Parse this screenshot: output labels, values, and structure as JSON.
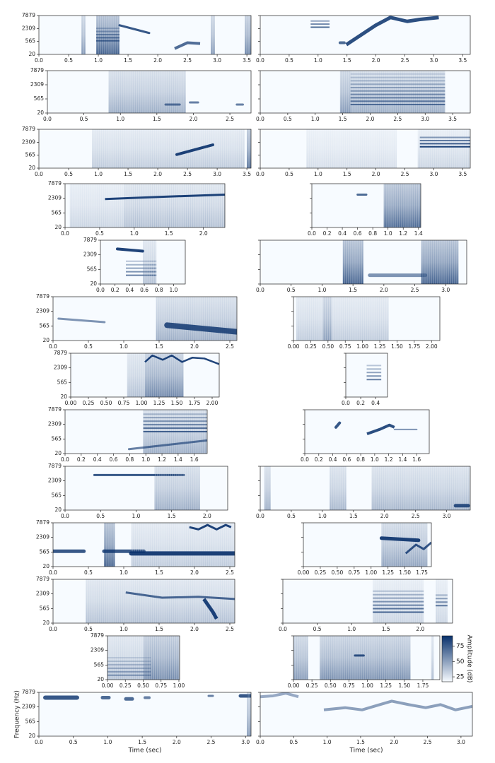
{
  "chart_data": [
    {
      "type": "spectrogram",
      "xlim": [
        0,
        3.57
      ],
      "xticks": [
        {
          "value": 0,
          "label": "0.0"
        },
        0.5,
        {
          "value": 1,
          "label": "1.0"
        },
        1.5,
        {
          "value": 2,
          "label": "2.0"
        },
        2.5,
        {
          "value": 3,
          "label": "3.0"
        },
        3.5
      ],
      "ylabels": [
        "7879",
        "2309",
        "565",
        "20"
      ]
    },
    {
      "type": "spectrogram",
      "xlim": [
        0,
        3.63
      ],
      "xticks": [
        {
          "value": 0,
          "label": "0.0"
        },
        0.5,
        {
          "value": 1,
          "label": "1.0"
        },
        1.5,
        {
          "value": 2,
          "label": "2.0"
        },
        2.5,
        {
          "value": 3,
          "label": "3.0"
        },
        3.5
      ]
    },
    {
      "type": "spectrogram",
      "xlim": [
        0,
        2.79
      ],
      "xticks": [
        {
          "value": 0,
          "label": "0.0"
        },
        0.5,
        {
          "value": 1,
          "label": "1.0"
        },
        1.5,
        {
          "value": 2,
          "label": "2.0"
        },
        2.5
      ],
      "ylabels": [
        "7879",
        "2309",
        "565",
        "20"
      ]
    },
    {
      "type": "spectrogram",
      "xlim": [
        0,
        3.82
      ],
      "xticks": [
        {
          "value": 0,
          "label": "0.0"
        },
        0.5,
        {
          "value": 1,
          "label": "1.0"
        },
        1.5,
        {
          "value": 2,
          "label": "2.0"
        },
        2.5,
        {
          "value": 3,
          "label": "3.0"
        },
        3.5
      ]
    },
    {
      "type": "spectrogram",
      "xlim": [
        0,
        3.57
      ],
      "xticks": [
        {
          "value": 0,
          "label": "0.0"
        },
        0.5,
        {
          "value": 1,
          "label": "1.0"
        },
        1.5,
        {
          "value": 2,
          "label": "2.0"
        },
        2.5,
        {
          "value": 3,
          "label": "3.0"
        },
        3.5
      ],
      "ylabels": [
        "7879",
        "2309",
        "565",
        "20"
      ]
    },
    {
      "type": "spectrogram",
      "xlim": [
        0,
        3.63
      ],
      "xticks": [
        {
          "value": 0,
          "label": "0.0"
        },
        0.5,
        {
          "value": 1,
          "label": "1.0"
        },
        1.5,
        {
          "value": 2,
          "label": "2.0"
        },
        2.5,
        {
          "value": 3,
          "label": "3.0"
        },
        3.5
      ]
    },
    {
      "type": "spectrogram",
      "xlim": [
        0,
        2.31
      ],
      "xticks": [
        {
          "value": 0,
          "label": "0.0"
        },
        0.5,
        {
          "value": 1,
          "label": "1.0"
        },
        1.5,
        {
          "value": 2,
          "label": "2.0"
        }
      ],
      "ylabels": [
        "7879",
        "2309",
        "565",
        "20"
      ]
    },
    {
      "type": "spectrogram",
      "xlim": [
        0,
        1.43
      ],
      "xticks": [
        {
          "value": 0,
          "label": "0.0"
        },
        0.2,
        0.4,
        0.6,
        0.8,
        {
          "value": 1,
          "label": "1.0"
        },
        1.2,
        1.4
      ]
    },
    {
      "type": "spectrogram",
      "xlim": [
        0,
        1.16
      ],
      "xticks": [
        {
          "value": 0,
          "label": "0.0"
        },
        0.2,
        0.4,
        0.6,
        0.8,
        {
          "value": 1,
          "label": "1.0"
        }
      ],
      "ylabels": [
        "7879",
        "2309",
        "565",
        "20"
      ]
    },
    {
      "type": "spectrogram",
      "xlim": [
        0,
        3.34
      ],
      "xticks": [
        {
          "value": 0,
          "label": "0.0"
        },
        0.5,
        {
          "value": 1,
          "label": "1.0"
        },
        1.5,
        {
          "value": 2,
          "label": "2.0"
        },
        2.5,
        {
          "value": 3,
          "label": "3.0"
        }
      ]
    },
    {
      "type": "spectrogram",
      "xlim": [
        0,
        2.6
      ],
      "xticks": [
        {
          "value": 0,
          "label": "0.0"
        },
        0.5,
        {
          "value": 1,
          "label": "1.0"
        },
        1.5,
        {
          "value": 2,
          "label": "2.0"
        },
        2.5
      ],
      "ylabels": [
        "7879",
        "2309",
        "565",
        "20"
      ]
    },
    {
      "type": "spectrogram",
      "xlim": [
        0,
        2.12
      ],
      "xticks": [
        {
          "value": 0,
          "label": "0.00"
        },
        0.25,
        {
          "value": 0.5,
          "label": "0.50"
        },
        0.75,
        {
          "value": 1,
          "label": "1.00"
        },
        1.25,
        {
          "value": 1.5,
          "label": "1.50"
        },
        1.75,
        {
          "value": 2,
          "label": "2.00"
        }
      ]
    },
    {
      "type": "spectrogram",
      "xlim": [
        0,
        2.1
      ],
      "xticks": [
        {
          "value": 0,
          "label": "0.00"
        },
        0.25,
        {
          "value": 0.5,
          "label": "0.50"
        },
        0.75,
        {
          "value": 1,
          "label": "1.00"
        },
        1.25,
        {
          "value": 1.5,
          "label": "1.50"
        },
        1.75,
        {
          "value": 2,
          "label": "2.00"
        }
      ],
      "ylabels": [
        "7879",
        "2309",
        "565",
        "20"
      ]
    },
    {
      "type": "spectrogram",
      "xlim": [
        0,
        0.56
      ],
      "xticks": [
        {
          "value": 0,
          "label": "0.0"
        },
        0.2,
        0.4
      ]
    },
    {
      "type": "spectrogram",
      "xlim": [
        0,
        1.76
      ],
      "xticks": [
        {
          "value": 0,
          "label": "0.0"
        },
        0.2,
        0.4,
        0.6,
        0.8,
        {
          "value": 1,
          "label": "1.0"
        },
        1.2,
        1.4,
        1.6
      ],
      "ylabels": [
        "7879",
        "2309",
        "565",
        "20"
      ]
    },
    {
      "type": "spectrogram",
      "xlim": [
        0,
        1.78
      ],
      "xticks": [
        {
          "value": 0,
          "label": "0.0"
        },
        0.2,
        0.4,
        0.6,
        0.8,
        {
          "value": 1,
          "label": "1.0"
        },
        1.2,
        1.4,
        1.6
      ]
    },
    {
      "type": "spectrogram",
      "xlim": [
        0,
        2.29
      ],
      "xticks": [
        {
          "value": 0,
          "label": "0.0"
        },
        0.5,
        {
          "value": 1,
          "label": "1.0"
        },
        1.5,
        {
          "value": 2,
          "label": "2.0"
        }
      ],
      "ylabels": [
        "7879",
        "2309",
        "565",
        "20"
      ]
    },
    {
      "type": "spectrogram",
      "xlim": [
        0,
        3.38
      ],
      "xticks": [
        {
          "value": 0,
          "label": "0.0"
        },
        0.5,
        {
          "value": 1,
          "label": "1.0"
        },
        1.5,
        {
          "value": 2,
          "label": "2.0"
        },
        2.5,
        {
          "value": 3,
          "label": "3.0"
        }
      ]
    },
    {
      "type": "spectrogram",
      "xlim": [
        0,
        2.57
      ],
      "xticks": [
        {
          "value": 0,
          "label": "0.0"
        },
        0.5,
        {
          "value": 1,
          "label": "1.0"
        },
        1.5,
        {
          "value": 2,
          "label": "2.0"
        },
        2.5
      ],
      "ylabels": [
        "7879",
        "2309",
        "565",
        "20"
      ]
    },
    {
      "type": "spectrogram",
      "xlim": [
        0,
        1.89
      ],
      "xticks": [
        {
          "value": 0,
          "label": "0.00"
        },
        0.25,
        {
          "value": 0.5,
          "label": "0.50"
        },
        0.75,
        {
          "value": 1,
          "label": "1.00"
        },
        1.25,
        {
          "value": 1.5,
          "label": "1.50"
        },
        1.75
      ]
    },
    {
      "type": "spectrogram",
      "xlim": [
        0,
        2.57
      ],
      "xticks": [
        {
          "value": 0,
          "label": "0.0"
        },
        0.5,
        {
          "value": 1,
          "label": "1.0"
        },
        1.5,
        {
          "value": 2,
          "label": "2.0"
        },
        2.5
      ],
      "ylabels": [
        "7879",
        "2309",
        "565",
        "20"
      ]
    },
    {
      "type": "spectrogram",
      "xlim": [
        0,
        2.47
      ],
      "xticks": [
        {
          "value": 0,
          "label": "0.0"
        },
        0.5,
        {
          "value": 1,
          "label": "1.0"
        },
        1.5,
        {
          "value": 2,
          "label": "2.0"
        }
      ]
    },
    {
      "type": "spectrogram",
      "xlim": [
        0,
        1.01
      ],
      "xticks": [
        {
          "value": 0,
          "label": "0.00"
        },
        0.25,
        {
          "value": 0.5,
          "label": "0.50"
        },
        0.75,
        {
          "value": 1,
          "label": "1.00"
        }
      ],
      "ylabels": [
        "7879",
        "2309",
        "565",
        "20"
      ]
    },
    {
      "type": "spectrogram",
      "xlim": [
        0,
        1.98
      ],
      "xticks": [
        {
          "value": 0,
          "label": "0.00"
        },
        0.25,
        {
          "value": 0.5,
          "label": "0.50"
        },
        0.75,
        {
          "value": 1,
          "label": "1.00"
        },
        1.25,
        {
          "value": 1.5,
          "label": "1.50"
        },
        1.75
      ],
      "colorbar": {
        "label": "Amplitude (dB)",
        "lim": [
          17,
          92
        ],
        "ticks": [
          25,
          50,
          75
        ],
        "colors": [
          "#f7fbff",
          "#08306b"
        ]
      }
    },
    {
      "type": "spectrogram",
      "xlim": [
        0,
        3.08
      ],
      "xticks": [
        {
          "value": 0,
          "label": "0.0"
        },
        0.5,
        {
          "value": 1,
          "label": "1.0"
        },
        1.5,
        {
          "value": 2,
          "label": "2.0"
        },
        2.5,
        {
          "value": 3,
          "label": "3.0"
        }
      ],
      "ylabels": [
        "7879",
        "2309",
        "565",
        "20"
      ],
      "xlabel": "Time (sec)",
      "ylabel": "Frequency (Hz)"
    },
    {
      "type": "spectrogram",
      "xlim": [
        0,
        3.17
      ],
      "xticks": [
        {
          "value": 0,
          "label": "0.0"
        },
        0.5,
        {
          "value": 1,
          "label": "1.0"
        },
        1.5,
        {
          "value": 2,
          "label": "2.0"
        },
        2.5,
        {
          "value": 3,
          "label": "3.0"
        }
      ],
      "xlabel": "Time (sec)"
    }
  ]
}
